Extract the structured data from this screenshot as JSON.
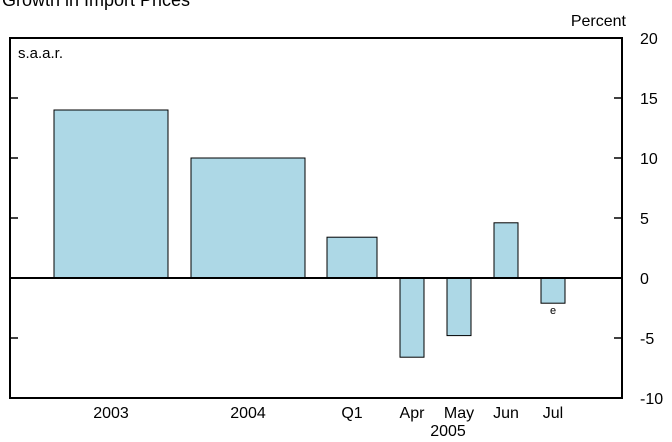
{
  "chart_data": {
    "type": "bar",
    "title": "Growth in Import Prices",
    "unit_label": "Percent",
    "note_label": "s.a.a.r.",
    "year_group_label": "2005",
    "categories": [
      "2003",
      "2004",
      "Q1",
      "Apr",
      "May",
      "Jun",
      "Jul"
    ],
    "values": [
      14.0,
      10.0,
      3.4,
      -6.6,
      -4.8,
      4.6,
      -2.1
    ],
    "annotations": [
      {
        "category": "Jul",
        "text": "e"
      }
    ],
    "ylim": [
      -10,
      20
    ],
    "yticks": [
      -10,
      -5,
      0,
      5,
      10,
      15,
      20
    ],
    "ytick_labels": [
      "-10",
      "-5",
      "0",
      "5",
      "10",
      "15",
      "20"
    ],
    "grid": false,
    "bar_color": "#add8e6",
    "bar_edge_color": "#000000"
  }
}
